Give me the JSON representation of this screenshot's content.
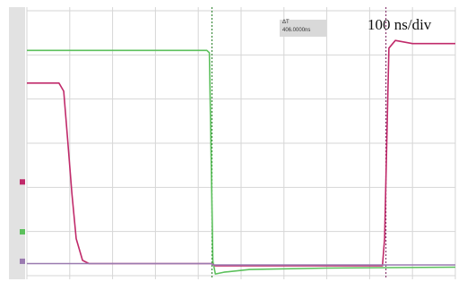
{
  "timebase_label": "100 ns/div",
  "cursor_readout": {
    "line1": "ΔT",
    "line2": "406.0000ns"
  },
  "colors": {
    "background": "#ffffff",
    "grid": "#d6d6d6",
    "ch1": "#5cc05c",
    "ch2": "#c02a6a",
    "ch3": "#9a7ab0",
    "cursor_green": "#3a8a3a",
    "cursor_magenta": "#8a3a70",
    "left_strip": "#e2e2e2"
  },
  "chart_data": {
    "type": "line",
    "title": "",
    "xlabel": "",
    "ylabel": "",
    "x_divisions": 10,
    "y_divisions": 6,
    "xlim": [
      0,
      10
    ],
    "ylim": [
      0,
      6
    ],
    "grid": true,
    "x_unit_per_div": "100 ns",
    "cursors_x": [
      4.32,
      8.38
    ],
    "series": [
      {
        "key": "ch1",
        "x": [
          0,
          4.2,
          4.26,
          4.3,
          4.34,
          4.4,
          4.6,
          5.2,
          7.0,
          10
        ],
        "y": [
          4.75,
          4.75,
          4.7,
          2.5,
          0.1,
          -0.18,
          -0.14,
          -0.08,
          -0.05,
          -0.03
        ]
      },
      {
        "key": "ch2",
        "x": [
          0,
          0.75,
          0.86,
          0.95,
          1.05,
          1.15,
          1.3,
          1.45,
          2.0,
          4.3,
          4.4,
          8.3,
          8.35,
          8.45,
          8.6,
          9.0,
          10
        ],
        "y": [
          4.03,
          4.03,
          3.85,
          2.8,
          1.6,
          0.6,
          0.12,
          0.05,
          0.05,
          0.05,
          0.0,
          0.0,
          0.6,
          4.8,
          4.97,
          4.9,
          4.9
        ]
      },
      {
        "key": "ch3",
        "x": [
          0,
          4.3,
          4.35,
          10
        ],
        "y": [
          0.05,
          0.05,
          0.02,
          0.02
        ]
      }
    ]
  }
}
